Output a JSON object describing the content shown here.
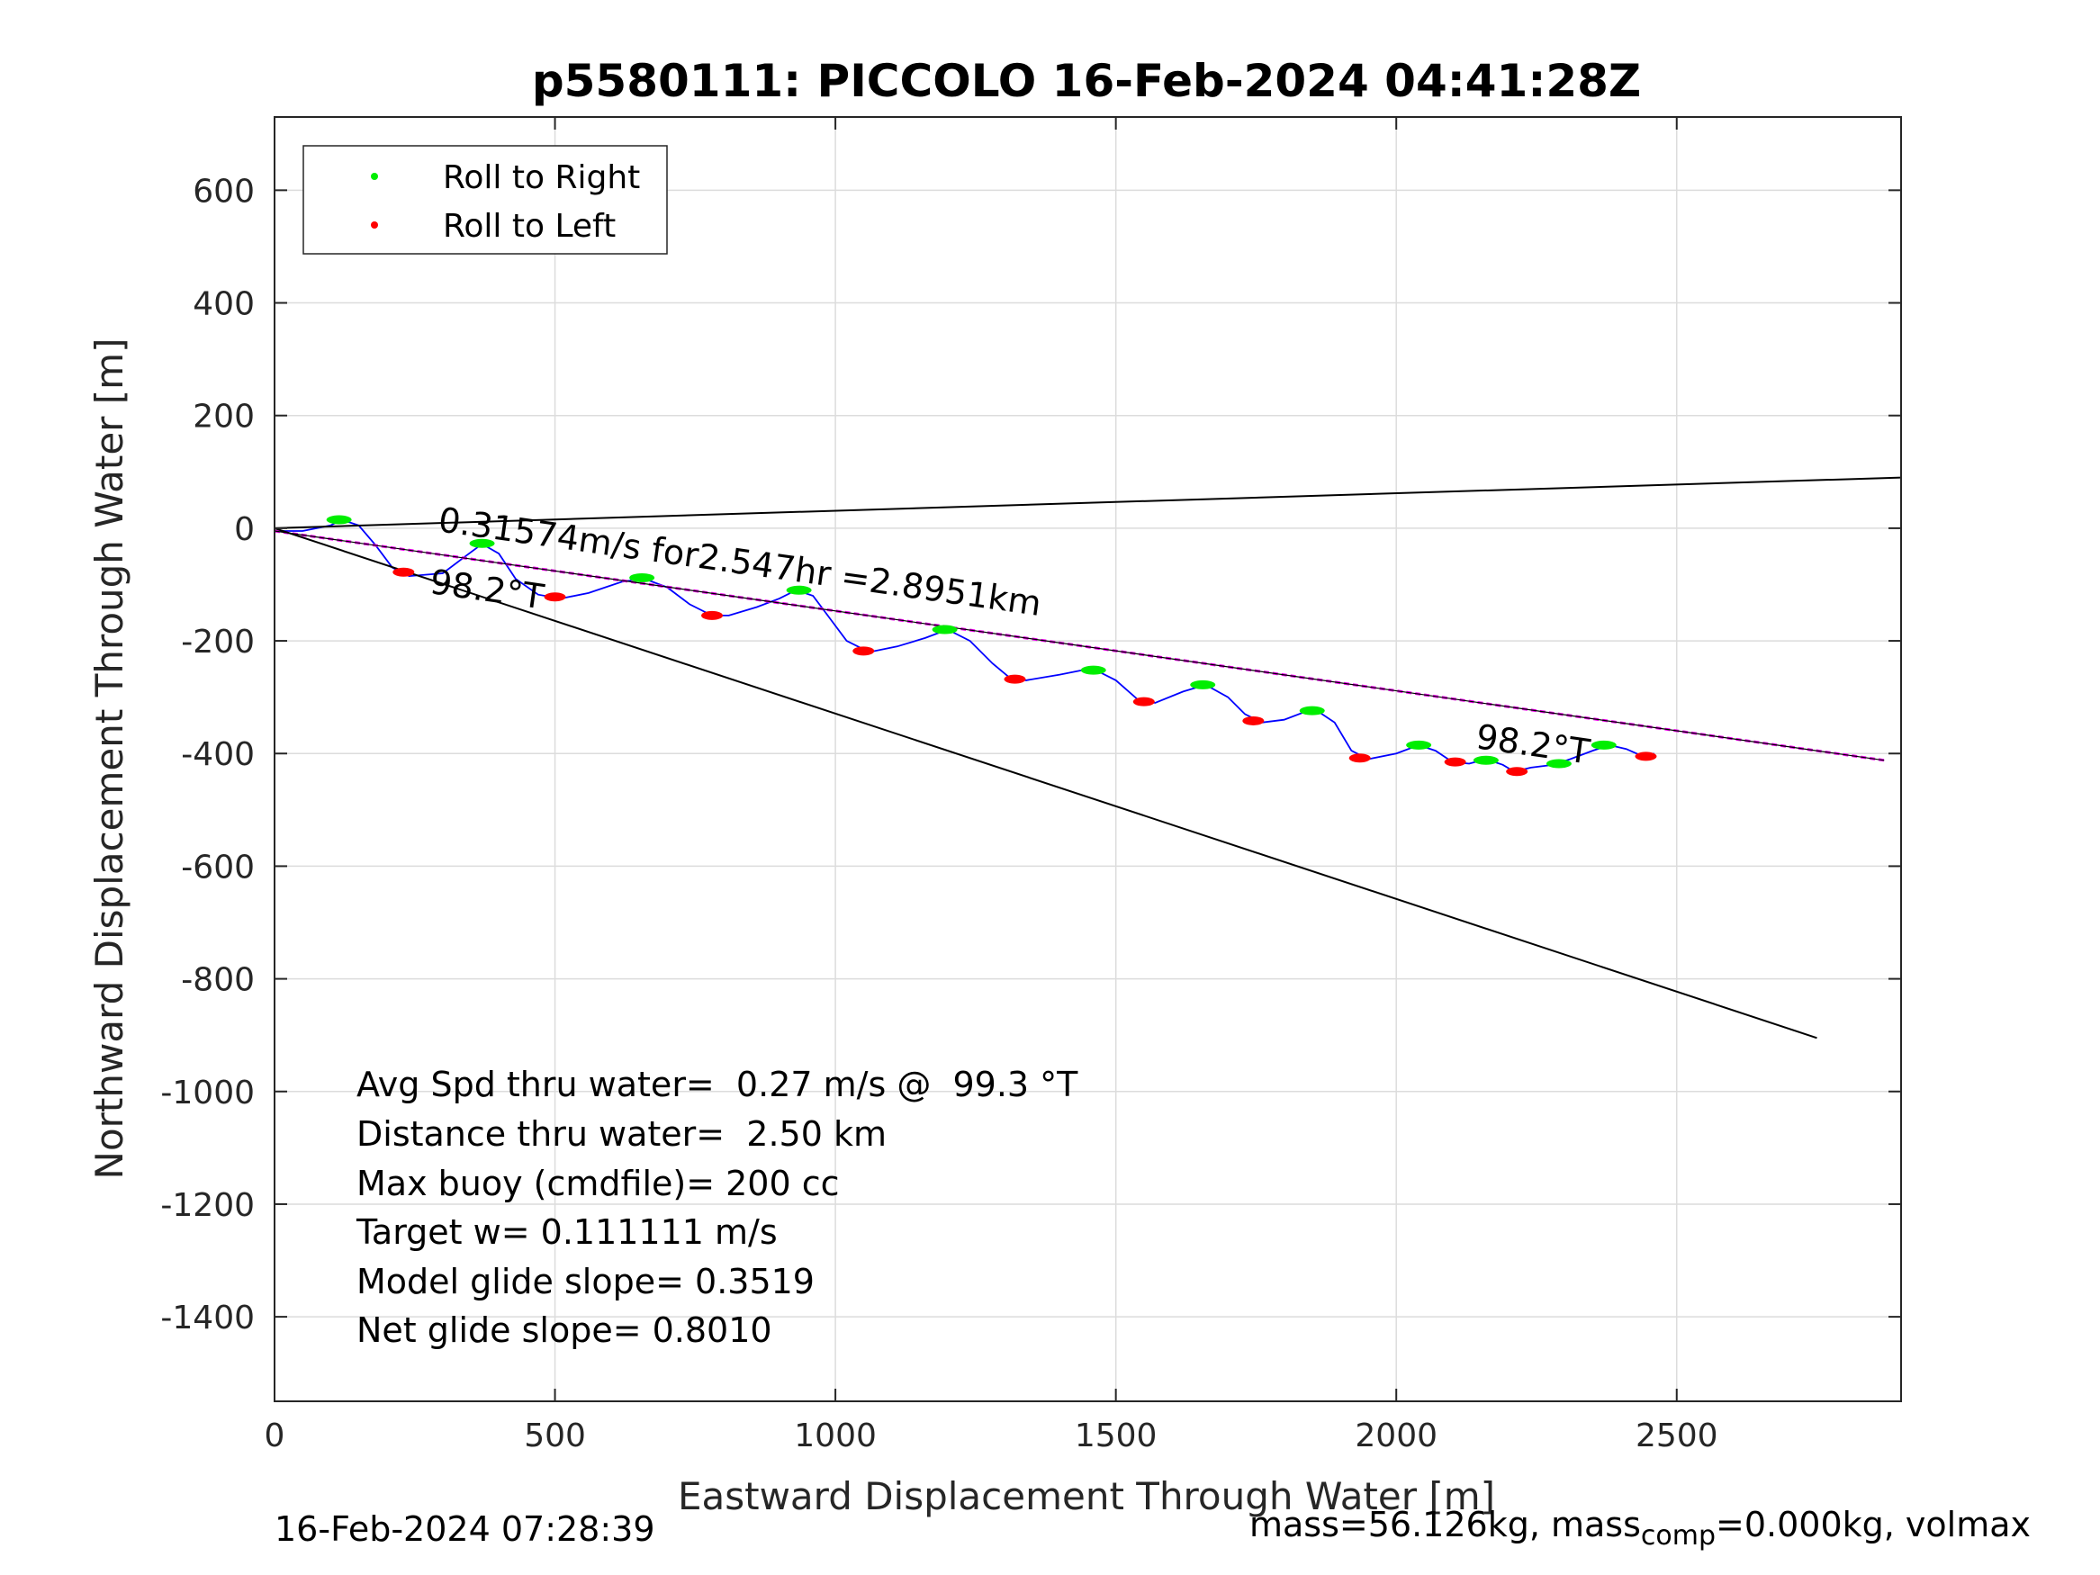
{
  "chart_data": {
    "type": "line",
    "title": "p5580111: PICCOLO 16-Feb-2024 04:41:28Z",
    "xlabel": "Eastward Displacement Through Water [m]",
    "ylabel": "Northward Displacement Through Water [m]",
    "xlim": [
      0,
      2900
    ],
    "ylim": [
      -1550,
      730
    ],
    "xticks": [
      0,
      500,
      1000,
      1500,
      2000,
      2500
    ],
    "yticks": [
      600,
      400,
      200,
      0,
      -200,
      -400,
      -600,
      -800,
      -1000,
      -1200,
      -1400
    ],
    "grid": true,
    "legend": {
      "placement": "top-left",
      "entries": [
        {
          "label": "Roll to Right",
          "color": "#00ee00"
        },
        {
          "label": "Roll to Left",
          "color": "#ff0000"
        }
      ]
    },
    "series": [
      {
        "color": "#0000ff",
        "points": [
          [
            0,
            -5
          ],
          [
            50,
            -5
          ],
          [
            100,
            5
          ],
          [
            120,
            15
          ],
          [
            150,
            5
          ],
          [
            180,
            -30
          ],
          [
            210,
            -70
          ],
          [
            240,
            -85
          ],
          [
            300,
            -80
          ],
          [
            340,
            -50
          ],
          [
            370,
            -28
          ],
          [
            400,
            -45
          ],
          [
            430,
            -90
          ],
          [
            470,
            -118
          ],
          [
            510,
            -125
          ],
          [
            560,
            -115
          ],
          [
            620,
            -95
          ],
          [
            660,
            -90
          ],
          [
            700,
            -105
          ],
          [
            740,
            -135
          ],
          [
            780,
            -155
          ],
          [
            810,
            -155
          ],
          [
            860,
            -140
          ],
          [
            900,
            -125
          ],
          [
            930,
            -110
          ],
          [
            960,
            -120
          ],
          [
            990,
            -160
          ],
          [
            1020,
            -200
          ],
          [
            1060,
            -220
          ],
          [
            1110,
            -210
          ],
          [
            1160,
            -195
          ],
          [
            1200,
            -180
          ],
          [
            1240,
            -200
          ],
          [
            1280,
            -240
          ],
          [
            1310,
            -265
          ],
          [
            1340,
            -270
          ],
          [
            1400,
            -260
          ],
          [
            1440,
            -252
          ],
          [
            1470,
            -255
          ],
          [
            1500,
            -270
          ],
          [
            1540,
            -305
          ],
          [
            1570,
            -310
          ],
          [
            1620,
            -290
          ],
          [
            1660,
            -278
          ],
          [
            1700,
            -300
          ],
          [
            1730,
            -330
          ],
          [
            1760,
            -345
          ],
          [
            1800,
            -340
          ],
          [
            1840,
            -325
          ],
          [
            1860,
            -325
          ],
          [
            1890,
            -345
          ],
          [
            1920,
            -395
          ],
          [
            1950,
            -410
          ],
          [
            2000,
            -400
          ],
          [
            2040,
            -385
          ],
          [
            2070,
            -395
          ],
          [
            2100,
            -415
          ],
          [
            2130,
            -418
          ],
          [
            2160,
            -410
          ],
          [
            2190,
            -420
          ],
          [
            2210,
            -432
          ],
          [
            2240,
            -425
          ],
          [
            2280,
            -420
          ],
          [
            2310,
            -410
          ],
          [
            2350,
            -395
          ],
          [
            2380,
            -385
          ],
          [
            2410,
            -392
          ],
          [
            2440,
            -405
          ],
          [
            2460,
            -400
          ]
        ]
      },
      {
        "color": "#ee00ee",
        "points": [
          [
            0,
            -5
          ],
          [
            2870,
            -412
          ]
        ]
      },
      {
        "color": "#000000",
        "points": [
          [
            0,
            -5
          ],
          [
            2870,
            -412
          ]
        ]
      },
      {
        "color": "#000000",
        "points": [
          [
            0,
            0
          ],
          [
            2900,
            90
          ]
        ]
      },
      {
        "color": "#000000",
        "points": [
          [
            0,
            0
          ],
          [
            2750,
            -905
          ]
        ]
      }
    ],
    "roll_right_x": [
      115,
      370,
      655,
      935,
      1195,
      1460,
      1655,
      1850,
      2040,
      2160,
      2290,
      2370
    ],
    "roll_right_y": [
      15,
      -27,
      -88,
      -110,
      -180,
      -252,
      -278,
      -324,
      -385,
      -412,
      -418,
      -385
    ],
    "roll_left_x": [
      230,
      500,
      780,
      1050,
      1320,
      1550,
      1745,
      1935,
      2105,
      2215,
      2445
    ],
    "roll_left_y": [
      -78,
      -122,
      -155,
      -218,
      -268,
      -308,
      -342,
      -408,
      -415,
      -432,
      -405
    ],
    "annotations": [
      {
        "text": "0.31574m/s for2.547hr =2.8951km",
        "x": 290,
        "y": -5,
        "rotation": 8
      },
      {
        "text": "98.2°T",
        "x": 275,
        "y": -115,
        "rotation": 8
      },
      {
        "text": "98.2°T",
        "x": 2140,
        "y": -390,
        "rotation": 8
      }
    ]
  },
  "stats": [
    "Avg Spd thru water=  0.27 m/s @  99.3 °T",
    "Distance thru water=  2.50 km",
    "Max buoy (cmdfile)= 200 cc",
    "Target w= 0.111111 m/s",
    "Model glide slope= 0.3519",
    "Net glide slope= 0.8010"
  ],
  "footer": {
    "left": "16-Feb-2024 07:28:39",
    "right_main": "mass=56.126kg, mass",
    "right_sub": "comp",
    "right_tail": "=0.000kg, volmax"
  }
}
